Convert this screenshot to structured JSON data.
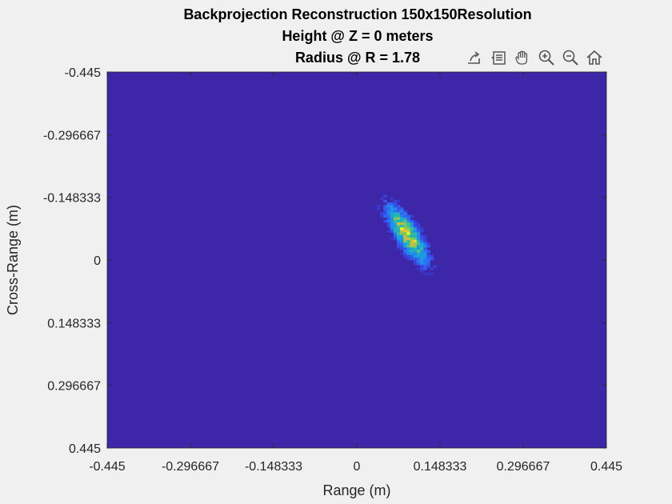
{
  "title": {
    "line1": "Backprojection Reconstruction 150x150Resolution",
    "line2": "Height @ Z = 0 meters",
    "line3": "Radius @ R = 1.78"
  },
  "toolbar": {
    "icons": [
      "export-icon",
      "datatips-icon",
      "pan-icon",
      "zoom-in-icon",
      "zoom-out-icon",
      "home-icon"
    ]
  },
  "colors": {
    "background": "#3e26a8",
    "figure": "#f0f0f0"
  },
  "chart_data": {
    "type": "heatmap",
    "title": "Backprojection Reconstruction 150x150Resolution Height @ Z = 0 meters Radius @ R = 1.78",
    "xlabel": "Range (m)",
    "ylabel": "Cross-Range (m)",
    "xlim": [
      -0.445,
      0.445
    ],
    "ylim": [
      -0.445,
      0.445
    ],
    "y_direction": "reversed",
    "x_ticks": [
      -0.445,
      -0.296667,
      -0.148333,
      0,
      0.148333,
      0.296667,
      0.445
    ],
    "x_tick_labels": [
      "-0.445",
      "-0.296667",
      "-0.148333",
      "0",
      "0.148333",
      "0.296667",
      "0.445"
    ],
    "y_ticks": [
      -0.445,
      -0.296667,
      -0.148333,
      0,
      0.148333,
      0.296667,
      0.445
    ],
    "y_tick_labels": [
      "-0.445",
      "-0.296667",
      "-0.148333",
      "0",
      "0.148333",
      "0.296667",
      "0.445"
    ],
    "resolution": [
      150,
      150
    ],
    "colormap": "parula",
    "hotspot": {
      "center_x": 0.09,
      "center_y": -0.06,
      "extent_x": [
        0.02,
        0.165
      ],
      "extent_y": [
        -0.18,
        0.07
      ],
      "peak_value": 1.0,
      "background_value": 0.0
    }
  }
}
